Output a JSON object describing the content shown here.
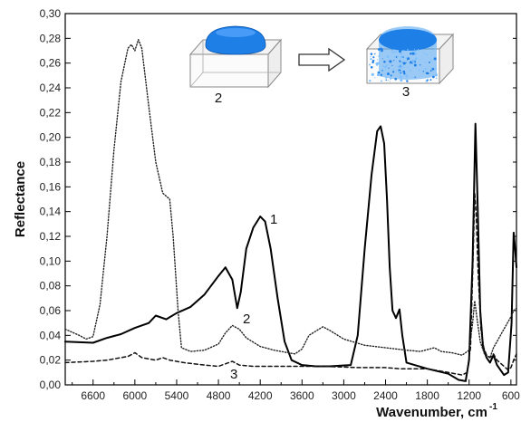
{
  "chart_data": {
    "type": "line",
    "xlabel": "Wavenumber, cm",
    "xlabel_sup": "-1",
    "ylabel": "Reflectance",
    "xlim": [
      7000,
      520
    ],
    "ylim": [
      0,
      0.3
    ],
    "x_reversed": true,
    "x_ticks": [
      6600,
      6000,
      5400,
      4800,
      4200,
      3600,
      3000,
      2400,
      1800,
      1200,
      600
    ],
    "y_ticks": [
      "0,00",
      "0,02",
      "0,04",
      "0,06",
      "0,08",
      "0,10",
      "0,12",
      "0,14",
      "0,16",
      "0,18",
      "0,20",
      "0,22",
      "0,24",
      "0,26",
      "0,28",
      "0,30"
    ],
    "grid": false,
    "legend": "none",
    "series": [
      {
        "name": "1",
        "style": "solid",
        "color": "#000000",
        "points": [
          [
            7000,
            0.035
          ],
          [
            6600,
            0.034
          ],
          [
            6400,
            0.038
          ],
          [
            6200,
            0.041
          ],
          [
            6000,
            0.046
          ],
          [
            5800,
            0.05
          ],
          [
            5700,
            0.056
          ],
          [
            5550,
            0.053
          ],
          [
            5400,
            0.058
          ],
          [
            5200,
            0.063
          ],
          [
            5000,
            0.073
          ],
          [
            4800,
            0.088
          ],
          [
            4700,
            0.095
          ],
          [
            4600,
            0.085
          ],
          [
            4530,
            0.062
          ],
          [
            4480,
            0.075
          ],
          [
            4400,
            0.11
          ],
          [
            4300,
            0.127
          ],
          [
            4200,
            0.136
          ],
          [
            4130,
            0.132
          ],
          [
            4050,
            0.11
          ],
          [
            3950,
            0.07
          ],
          [
            3850,
            0.035
          ],
          [
            3750,
            0.02
          ],
          [
            3600,
            0.016
          ],
          [
            3400,
            0.015
          ],
          [
            3200,
            0.015
          ],
          [
            2900,
            0.016
          ],
          [
            2800,
            0.04
          ],
          [
            2700,
            0.11
          ],
          [
            2600,
            0.17
          ],
          [
            2520,
            0.205
          ],
          [
            2470,
            0.209
          ],
          [
            2420,
            0.195
          ],
          [
            2380,
            0.15
          ],
          [
            2340,
            0.095
          ],
          [
            2300,
            0.06
          ],
          [
            2250,
            0.054
          ],
          [
            2200,
            0.061
          ],
          [
            2160,
            0.04
          ],
          [
            2100,
            0.018
          ],
          [
            1800,
            0.013
          ],
          [
            1500,
            0.009
          ],
          [
            1350,
            0.004
          ],
          [
            1250,
            0.003
          ],
          [
            1200,
            0.02
          ],
          [
            1150,
            0.1
          ],
          [
            1110,
            0.211
          ],
          [
            1080,
            0.15
          ],
          [
            1040,
            0.06
          ],
          [
            1000,
            0.03
          ],
          [
            950,
            0.022
          ],
          [
            900,
            0.018
          ],
          [
            850,
            0.024
          ],
          [
            800,
            0.016
          ],
          [
            700,
            0.008
          ],
          [
            640,
            0.01
          ],
          [
            590,
            0.05
          ],
          [
            560,
            0.123
          ],
          [
            540,
            0.11
          ],
          [
            520,
            0.095
          ]
        ]
      },
      {
        "name": "2",
        "style": "dotted",
        "color": "#222222",
        "points": [
          [
            7000,
            0.045
          ],
          [
            6800,
            0.04
          ],
          [
            6700,
            0.037
          ],
          [
            6600,
            0.039
          ],
          [
            6500,
            0.065
          ],
          [
            6400,
            0.12
          ],
          [
            6300,
            0.19
          ],
          [
            6200,
            0.245
          ],
          [
            6100,
            0.272
          ],
          [
            6050,
            0.275
          ],
          [
            6000,
            0.27
          ],
          [
            5950,
            0.279
          ],
          [
            5900,
            0.272
          ],
          [
            5800,
            0.225
          ],
          [
            5700,
            0.18
          ],
          [
            5600,
            0.155
          ],
          [
            5500,
            0.15
          ],
          [
            5450,
            0.12
          ],
          [
            5380,
            0.06
          ],
          [
            5330,
            0.03
          ],
          [
            5200,
            0.027
          ],
          [
            5000,
            0.028
          ],
          [
            4800,
            0.033
          ],
          [
            4700,
            0.042
          ],
          [
            4600,
            0.048
          ],
          [
            4500,
            0.045
          ],
          [
            4400,
            0.038
          ],
          [
            4200,
            0.031
          ],
          [
            4000,
            0.028
          ],
          [
            3800,
            0.026
          ],
          [
            3700,
            0.025
          ],
          [
            3600,
            0.029
          ],
          [
            3500,
            0.04
          ],
          [
            3300,
            0.047
          ],
          [
            3200,
            0.044
          ],
          [
            3000,
            0.037
          ],
          [
            2700,
            0.032
          ],
          [
            2400,
            0.03
          ],
          [
            2100,
            0.028
          ],
          [
            1900,
            0.027
          ],
          [
            1700,
            0.03
          ],
          [
            1600,
            0.027
          ],
          [
            1450,
            0.026
          ],
          [
            1300,
            0.024
          ],
          [
            1200,
            0.028
          ],
          [
            1150,
            0.05
          ],
          [
            1120,
            0.068
          ],
          [
            1090,
            0.055
          ],
          [
            1040,
            0.035
          ],
          [
            980,
            0.025
          ],
          [
            900,
            0.022
          ],
          [
            850,
            0.03
          ],
          [
            800,
            0.035
          ],
          [
            720,
            0.043
          ],
          [
            650,
            0.05
          ],
          [
            600,
            0.055
          ],
          [
            560,
            0.06
          ],
          [
            520,
            0.062
          ]
        ]
      },
      {
        "name": "3",
        "style": "dashed",
        "color": "#111111",
        "points": [
          [
            7000,
            0.018
          ],
          [
            6600,
            0.019
          ],
          [
            6400,
            0.02
          ],
          [
            6200,
            0.022
          ],
          [
            6100,
            0.023
          ],
          [
            6000,
            0.026
          ],
          [
            5900,
            0.022
          ],
          [
            5800,
            0.021
          ],
          [
            5700,
            0.02
          ],
          [
            5600,
            0.022
          ],
          [
            5500,
            0.02
          ],
          [
            5300,
            0.018
          ],
          [
            5000,
            0.016
          ],
          [
            4800,
            0.015
          ],
          [
            4700,
            0.017
          ],
          [
            4600,
            0.019
          ],
          [
            4500,
            0.016
          ],
          [
            4300,
            0.015
          ],
          [
            3800,
            0.015
          ],
          [
            3300,
            0.015
          ],
          [
            2800,
            0.014
          ],
          [
            2400,
            0.014
          ],
          [
            2200,
            0.013
          ],
          [
            1800,
            0.013
          ],
          [
            1500,
            0.01
          ],
          [
            1300,
            0.008
          ],
          [
            1230,
            0.01
          ],
          [
            1180,
            0.03
          ],
          [
            1140,
            0.11
          ],
          [
            1120,
            0.155
          ],
          [
            1100,
            0.14
          ],
          [
            1070,
            0.09
          ],
          [
            1030,
            0.045
          ],
          [
            990,
            0.03
          ],
          [
            950,
            0.024
          ],
          [
            900,
            0.022
          ],
          [
            850,
            0.025
          ],
          [
            800,
            0.02
          ],
          [
            700,
            0.015
          ],
          [
            640,
            0.012
          ],
          [
            600,
            0.014
          ],
          [
            560,
            0.02
          ],
          [
            520,
            0.025
          ]
        ]
      }
    ],
    "annotations": [
      "1",
      "2",
      "3"
    ],
    "inset": {
      "sample_2_label": "2",
      "sample_3_label": "3",
      "sample_color": "#1e7fe6"
    }
  }
}
